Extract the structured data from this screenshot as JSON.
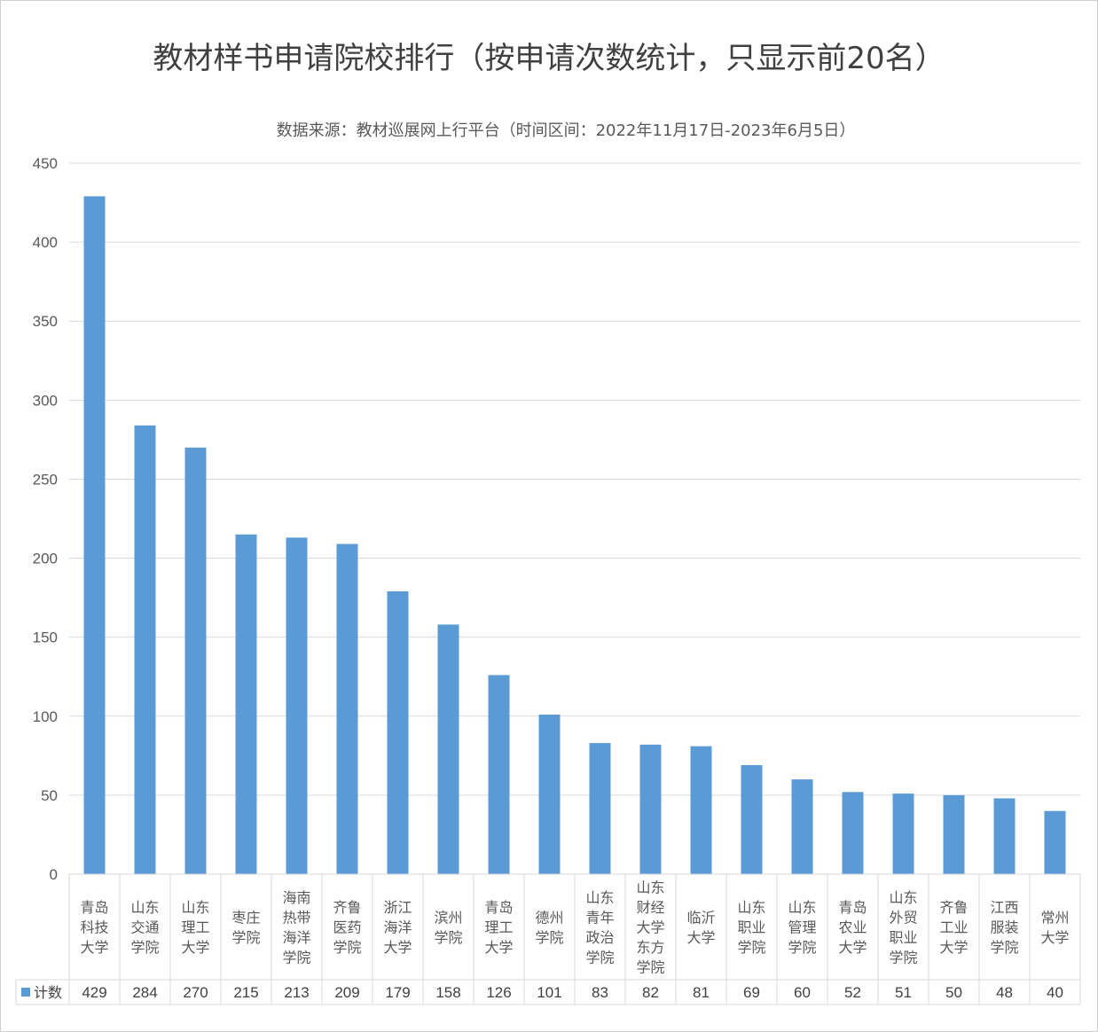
{
  "chart_data": {
    "type": "bar",
    "title": "教材样书申请院校排行（按申请次数统计，只显示前20名）",
    "subtitle": "数据来源：教材巡展网上行平台（时间区间：2022年11月17日-2023年6月5日）",
    "ylim": [
      0,
      450
    ],
    "yticks": [
      0,
      50,
      100,
      150,
      200,
      250,
      300,
      350,
      400,
      450
    ],
    "grid": true,
    "color": "#5B9BD5",
    "categories": [
      [
        "青岛",
        "科技",
        "大学"
      ],
      [
        "山东",
        "交通",
        "学院"
      ],
      [
        "山东",
        "理工",
        "大学"
      ],
      [
        "枣庄",
        "学院"
      ],
      [
        "海南",
        "热带",
        "海洋",
        "学院"
      ],
      [
        "齐鲁",
        "医药",
        "学院"
      ],
      [
        "浙江",
        "海洋",
        "大学"
      ],
      [
        "滨州",
        "学院"
      ],
      [
        "青岛",
        "理工",
        "大学"
      ],
      [
        "德州",
        "学院"
      ],
      [
        "山东",
        "青年",
        "政治",
        "学院"
      ],
      [
        "山东",
        "财经",
        "大学",
        "东方",
        "学院"
      ],
      [
        "临沂",
        "大学"
      ],
      [
        "山东",
        "职业",
        "学院"
      ],
      [
        "山东",
        "管理",
        "学院"
      ],
      [
        "青岛",
        "农业",
        "大学"
      ],
      [
        "山东",
        "外贸",
        "职业",
        "学院"
      ],
      [
        "齐鲁",
        "工业",
        "大学"
      ],
      [
        "江西",
        "服装",
        "学院"
      ],
      [
        "常州",
        "大学"
      ]
    ],
    "series": [
      {
        "name": "计数",
        "values": [
          429,
          284,
          270,
          215,
          213,
          209,
          179,
          158,
          126,
          101,
          83,
          82,
          81,
          69,
          60,
          52,
          51,
          50,
          48,
          40
        ]
      }
    ]
  }
}
